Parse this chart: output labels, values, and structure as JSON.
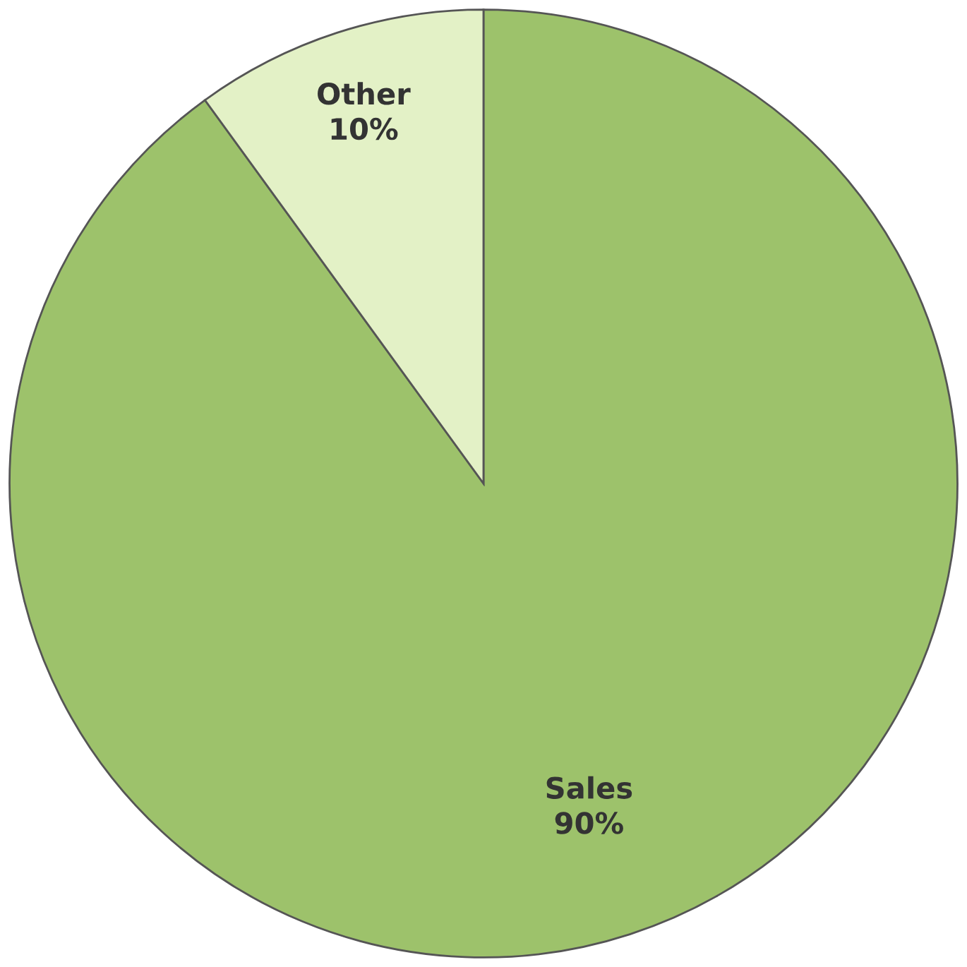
{
  "chart_data": {
    "type": "pie",
    "categories": [
      "Sales",
      "Other"
    ],
    "values": [
      90,
      10
    ],
    "colors": [
      "#9dc26b",
      "#e3f1c6"
    ],
    "value_labels": [
      "90%",
      "10%"
    ]
  }
}
